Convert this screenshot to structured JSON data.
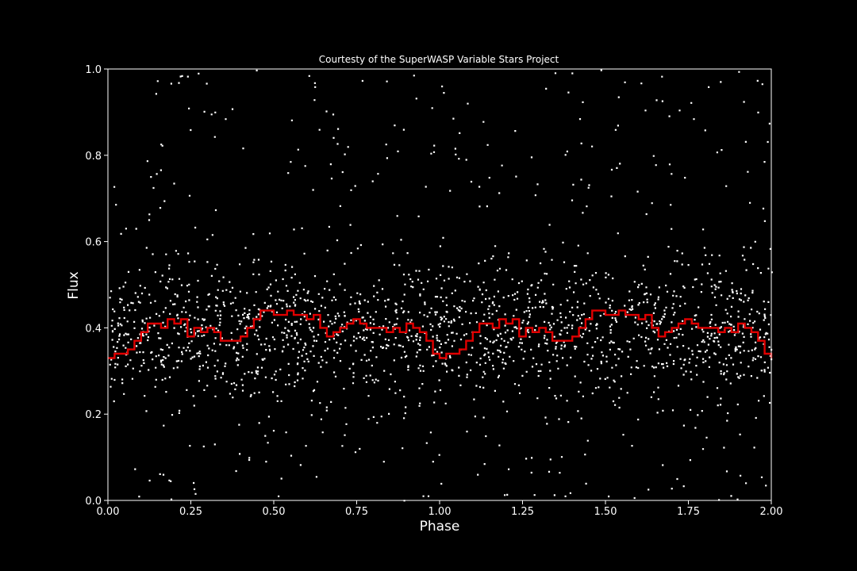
{
  "chart_data": {
    "type": "scatter",
    "title": "Courtesty of the SuperWASP Variable Stars Project",
    "xlabel": "Phase",
    "ylabel": "Flux",
    "xlim": [
      0,
      2
    ],
    "ylim": [
      0,
      1
    ],
    "x_ticks": [
      "0.00",
      "0.25",
      "0.50",
      "0.75",
      "1.00",
      "1.25",
      "1.50",
      "1.75",
      "2.00"
    ],
    "y_ticks": [
      "0.0",
      "0.2",
      "0.4",
      "0.6",
      "0.8",
      "1.0"
    ],
    "grid": false,
    "background_color": "#000000",
    "point_color": "#ffffff",
    "line_color": "#e00000",
    "binned_light_curve": {
      "type": "step",
      "x": [
        0.0,
        0.02,
        0.04,
        0.06,
        0.08,
        0.1,
        0.12,
        0.14,
        0.16,
        0.18,
        0.2,
        0.22,
        0.24,
        0.26,
        0.28,
        0.3,
        0.32,
        0.34,
        0.36,
        0.38,
        0.4,
        0.42,
        0.44,
        0.46,
        0.48,
        0.5,
        0.52,
        0.54,
        0.56,
        0.58,
        0.6,
        0.62,
        0.64,
        0.66,
        0.68,
        0.7,
        0.72,
        0.74,
        0.76,
        0.78,
        0.8,
        0.82,
        0.84,
        0.86,
        0.88,
        0.9,
        0.92,
        0.94,
        0.96,
        0.98,
        1.0
      ],
      "y": [
        0.33,
        0.34,
        0.34,
        0.35,
        0.37,
        0.39,
        0.41,
        0.41,
        0.4,
        0.42,
        0.41,
        0.42,
        0.38,
        0.4,
        0.39,
        0.4,
        0.39,
        0.37,
        0.37,
        0.37,
        0.38,
        0.4,
        0.42,
        0.44,
        0.44,
        0.43,
        0.43,
        0.44,
        0.43,
        0.43,
        0.42,
        0.43,
        0.4,
        0.38,
        0.39,
        0.4,
        0.41,
        0.42,
        0.41,
        0.4,
        0.4,
        0.4,
        0.39,
        0.4,
        0.39,
        0.41,
        0.4,
        0.39,
        0.37,
        0.34,
        0.33
      ],
      "repeats_period": 1.0
    }
  }
}
